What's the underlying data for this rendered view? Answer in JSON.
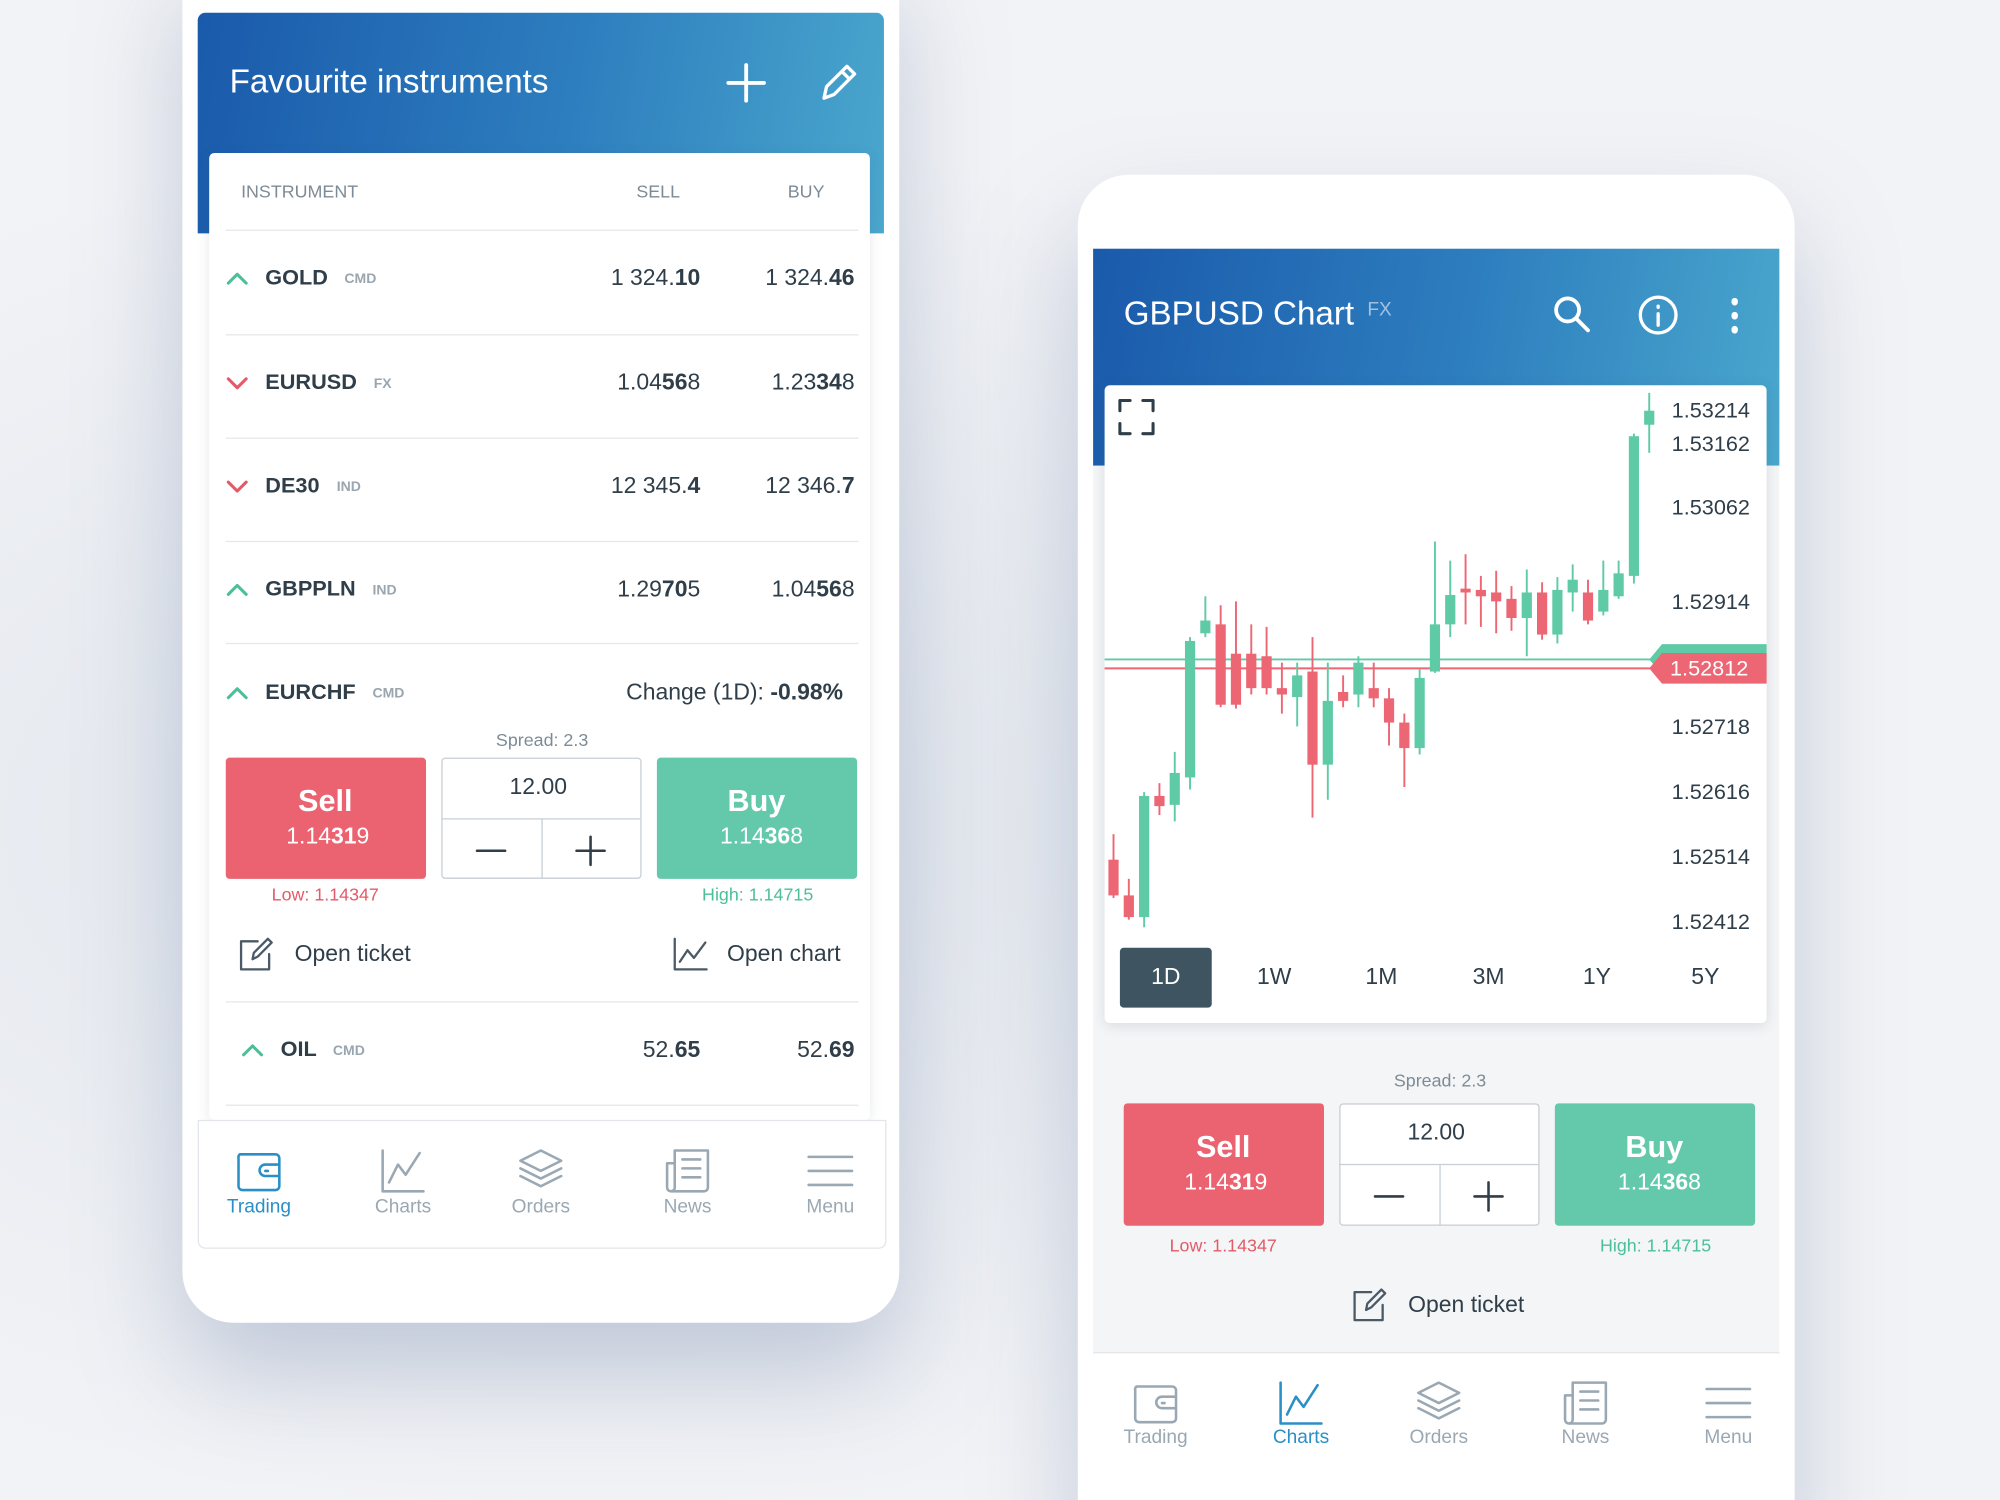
{
  "left_screen": {
    "title": "Favourite instruments",
    "columns": [
      "INSTRUMENT",
      "SELL",
      "BUY"
    ],
    "rows": [
      {
        "direction": "up",
        "name": "GOLD",
        "class": "CMD",
        "sell": [
          "1 324.",
          "10"
        ],
        "buy": [
          "1 324.",
          "46"
        ]
      },
      {
        "direction": "down",
        "name": "EURUSD",
        "class": "FX",
        "sell": [
          "1.04",
          "56",
          "8"
        ],
        "buy": [
          "1.23",
          "34",
          "8"
        ]
      },
      {
        "direction": "down",
        "name": "DE30",
        "class": "IND",
        "sell": [
          "12 345.",
          "4"
        ],
        "buy": [
          "12 346.",
          "7"
        ]
      },
      {
        "direction": "up",
        "name": "GBPPLN",
        "class": "IND",
        "sell": [
          "1.29",
          "70",
          "5"
        ],
        "buy": [
          "1.04",
          "56",
          "8"
        ]
      },
      {
        "direction": "up",
        "name": "EURCHF",
        "class": "CMD",
        "change_label": "Change (1D):",
        "change": "-0.98%"
      },
      {
        "direction": "up",
        "name": "OIL",
        "class": "CMD",
        "sell": [
          "52.",
          "65"
        ],
        "buy": [
          "52.",
          "69"
        ]
      }
    ],
    "trade": {
      "spread": "Spread: 2.3",
      "sell_label": "Sell",
      "sell_price": [
        "1.14",
        "31",
        "9"
      ],
      "quantity": "12.00",
      "buy_label": "Buy",
      "buy_price": [
        "1.14",
        "36",
        "8"
      ],
      "low": "Low: 1.14347",
      "high": "High: 1.14715"
    },
    "actions": [
      "Open ticket",
      "Open chart"
    ],
    "nav": [
      "Trading",
      "Charts",
      "Orders",
      "News",
      "Menu"
    ],
    "active_nav": 0
  },
  "right_screen": {
    "title": "GBPUSD Chart",
    "class": "FX",
    "ranges": [
      "1D",
      "1W",
      "1M",
      "3M",
      "1Y",
      "5Y"
    ],
    "active_range": 0,
    "trade": {
      "spread": "Spread: 2.3",
      "sell_label": "Sell",
      "sell_price": [
        "1.14",
        "31",
        "9"
      ],
      "quantity": "12.00",
      "buy_label": "Buy",
      "buy_price": [
        "1.14",
        "36",
        "8"
      ],
      "low": "Low: 1.14347",
      "high": "High: 1.14715"
    },
    "actions": [
      "Open ticket"
    ],
    "nav": [
      "Trading",
      "Charts",
      "Orders",
      "News",
      "Menu"
    ],
    "active_nav": 1
  },
  "chart_data": {
    "type": "candlestick",
    "open": [
      1.52512,
      1.52456,
      1.52422,
      1.52612,
      1.52598,
      1.52641,
      1.52867,
      1.52881,
      1.52835,
      1.52835,
      1.52831,
      1.52781,
      1.52767,
      1.52807,
      1.52661,
      1.52775,
      1.52771,
      1.52781,
      1.52765,
      1.52727,
      1.52687,
      1.52807,
      1.52881,
      1.52937,
      1.52935,
      1.52931,
      1.52921,
      1.52891,
      1.52931,
      1.52865,
      1.52931,
      1.52931,
      1.52901,
      1.52925,
      1.52957,
      1.53194
    ],
    "high": [
      1.52552,
      1.52482,
      1.52618,
      1.52632,
      1.52681,
      1.52861,
      1.52925,
      1.52911,
      1.52917,
      1.52881,
      1.52877,
      1.52821,
      1.52821,
      1.52861,
      1.52821,
      1.52801,
      1.52831,
      1.52821,
      1.52781,
      1.52741,
      1.52811,
      1.53011,
      1.52981,
      1.52991,
      1.52957,
      1.52965,
      1.52941,
      1.52967,
      1.52947,
      1.52955,
      1.52975,
      1.52951,
      1.52981,
      1.52981,
      1.5318,
      1.53244
    ],
    "low": [
      1.52452,
      1.52418,
      1.52406,
      1.52582,
      1.52572,
      1.52622,
      1.52861,
      1.52751,
      1.52749,
      1.52771,
      1.52771,
      1.52741,
      1.52721,
      1.52578,
      1.52606,
      1.52751,
      1.52751,
      1.52751,
      1.52691,
      1.52626,
      1.52677,
      1.52805,
      1.52861,
      1.52881,
      1.52877,
      1.52867,
      1.52871,
      1.52831,
      1.52857,
      1.52851,
      1.52901,
      1.52881,
      1.52895,
      1.52921,
      1.52945,
      1.5315
    ],
    "close": [
      1.52456,
      1.52422,
      1.52612,
      1.52596,
      1.52648,
      1.52855,
      1.52887,
      1.52755,
      1.52755,
      1.52781,
      1.52781,
      1.52771,
      1.52801,
      1.52661,
      1.52761,
      1.52761,
      1.52821,
      1.52765,
      1.52727,
      1.52687,
      1.52797,
      1.52881,
      1.52927,
      1.52931,
      1.52925,
      1.52917,
      1.52891,
      1.52931,
      1.52865,
      1.52935,
      1.52951,
      1.52887,
      1.52935,
      1.52961,
      1.53176,
      1.53216
    ],
    "up_color": "#5fcaa6",
    "down_color": "#ec6673",
    "ylim": [
      1.5239,
      1.5325
    ],
    "yticks": [
      1.53214,
      1.53162,
      1.53062,
      1.52914,
      1.52718,
      1.52616,
      1.52514,
      1.52412
    ],
    "price_lines": [
      {
        "value": 1.52826,
        "color": "#5fcaa6"
      },
      {
        "value": 1.52812,
        "color": "#ec6673"
      }
    ]
  }
}
